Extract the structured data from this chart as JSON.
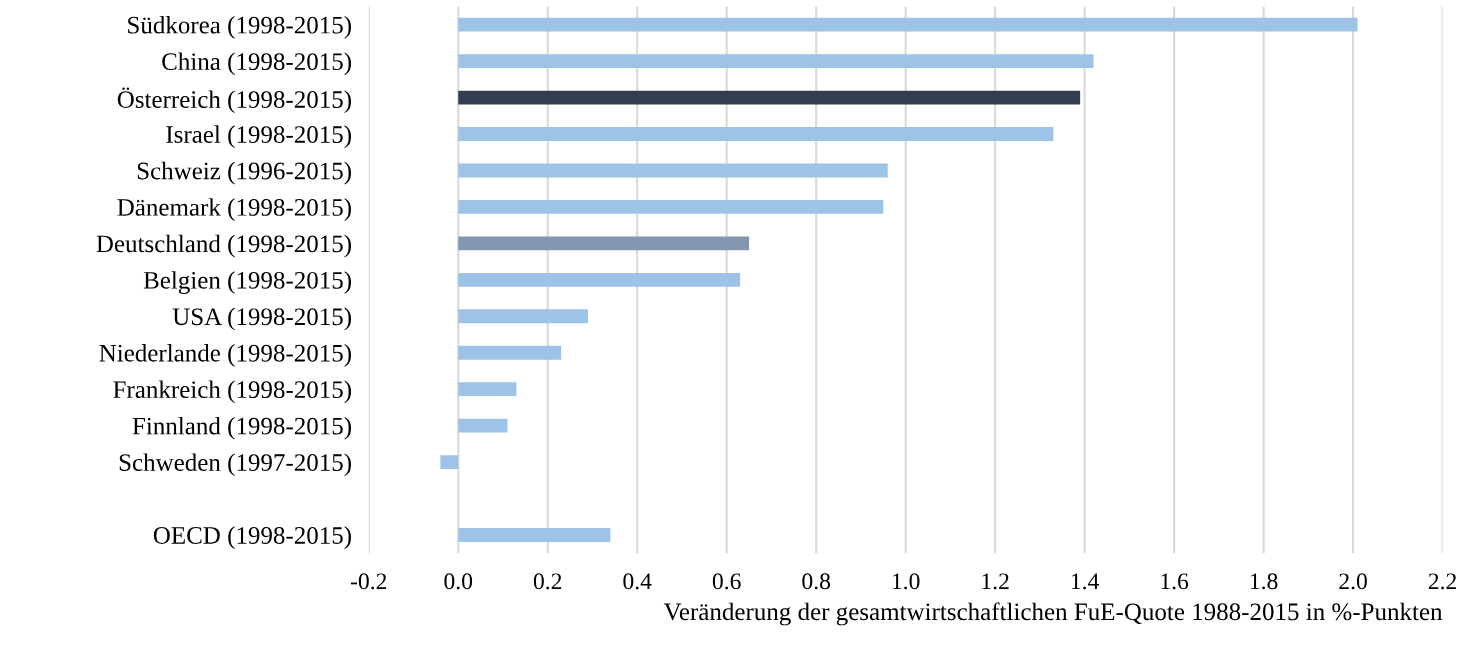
{
  "chart_data": {
    "type": "bar",
    "orientation": "horizontal",
    "xlabel": "Veränderung der gesamtwirtschaftlichen FuE-Quote 1988-2015 in %-Punkten",
    "categories": [
      "Südkorea (1998-2015)",
      "China (1998-2015)",
      "Österreich (1998-2015)",
      "Israel (1998-2015)",
      "Schweiz (1996-2015)",
      "Dänemark (1998-2015)",
      "Deutschland (1998-2015)",
      "Belgien (1998-2015)",
      "USA (1998-2015)",
      "Niederlande (1998-2015)",
      "Frankreich (1998-2015)",
      "Finnland (1998-2015)",
      "Schweden (1997-2015)",
      null,
      "OECD (1998-2015)"
    ],
    "values": [
      2.01,
      1.42,
      1.39,
      1.33,
      0.96,
      0.95,
      0.65,
      0.63,
      0.29,
      0.23,
      0.13,
      0.11,
      -0.04,
      null,
      0.34
    ],
    "colors": [
      "#9dc3e6",
      "#9dc3e6",
      "#333f50",
      "#9dc3e6",
      "#9dc3e6",
      "#9dc3e6",
      "#8497b0",
      "#9dc3e6",
      "#9dc3e6",
      "#9dc3e6",
      "#9dc3e6",
      "#9dc3e6",
      "#9dc3e6",
      "#9dc3e6",
      "#9dc3e6"
    ],
    "xlim": [
      -0.2,
      2.2
    ],
    "xticks": [
      {
        "value": -0.2,
        "label": "-0.2"
      },
      {
        "value": 0,
        "label": "0.0"
      },
      {
        "value": 0.2,
        "label": "0.2"
      },
      {
        "value": 0.4,
        "label": "0.4"
      },
      {
        "value": 0.6,
        "label": "0.6"
      },
      {
        "value": 0.8,
        "label": "0.8"
      },
      {
        "value": 1.0,
        "label": "1.0"
      },
      {
        "value": 1.2,
        "label": "1.2"
      },
      {
        "value": 1.4,
        "label": "1.4"
      },
      {
        "value": 1.6,
        "label": "1.6"
      },
      {
        "value": 1.8,
        "label": "1.8"
      },
      {
        "value": 2.0,
        "label": "2.0"
      },
      {
        "value": 2.2,
        "label": "2.2"
      }
    ],
    "grid": "x"
  }
}
